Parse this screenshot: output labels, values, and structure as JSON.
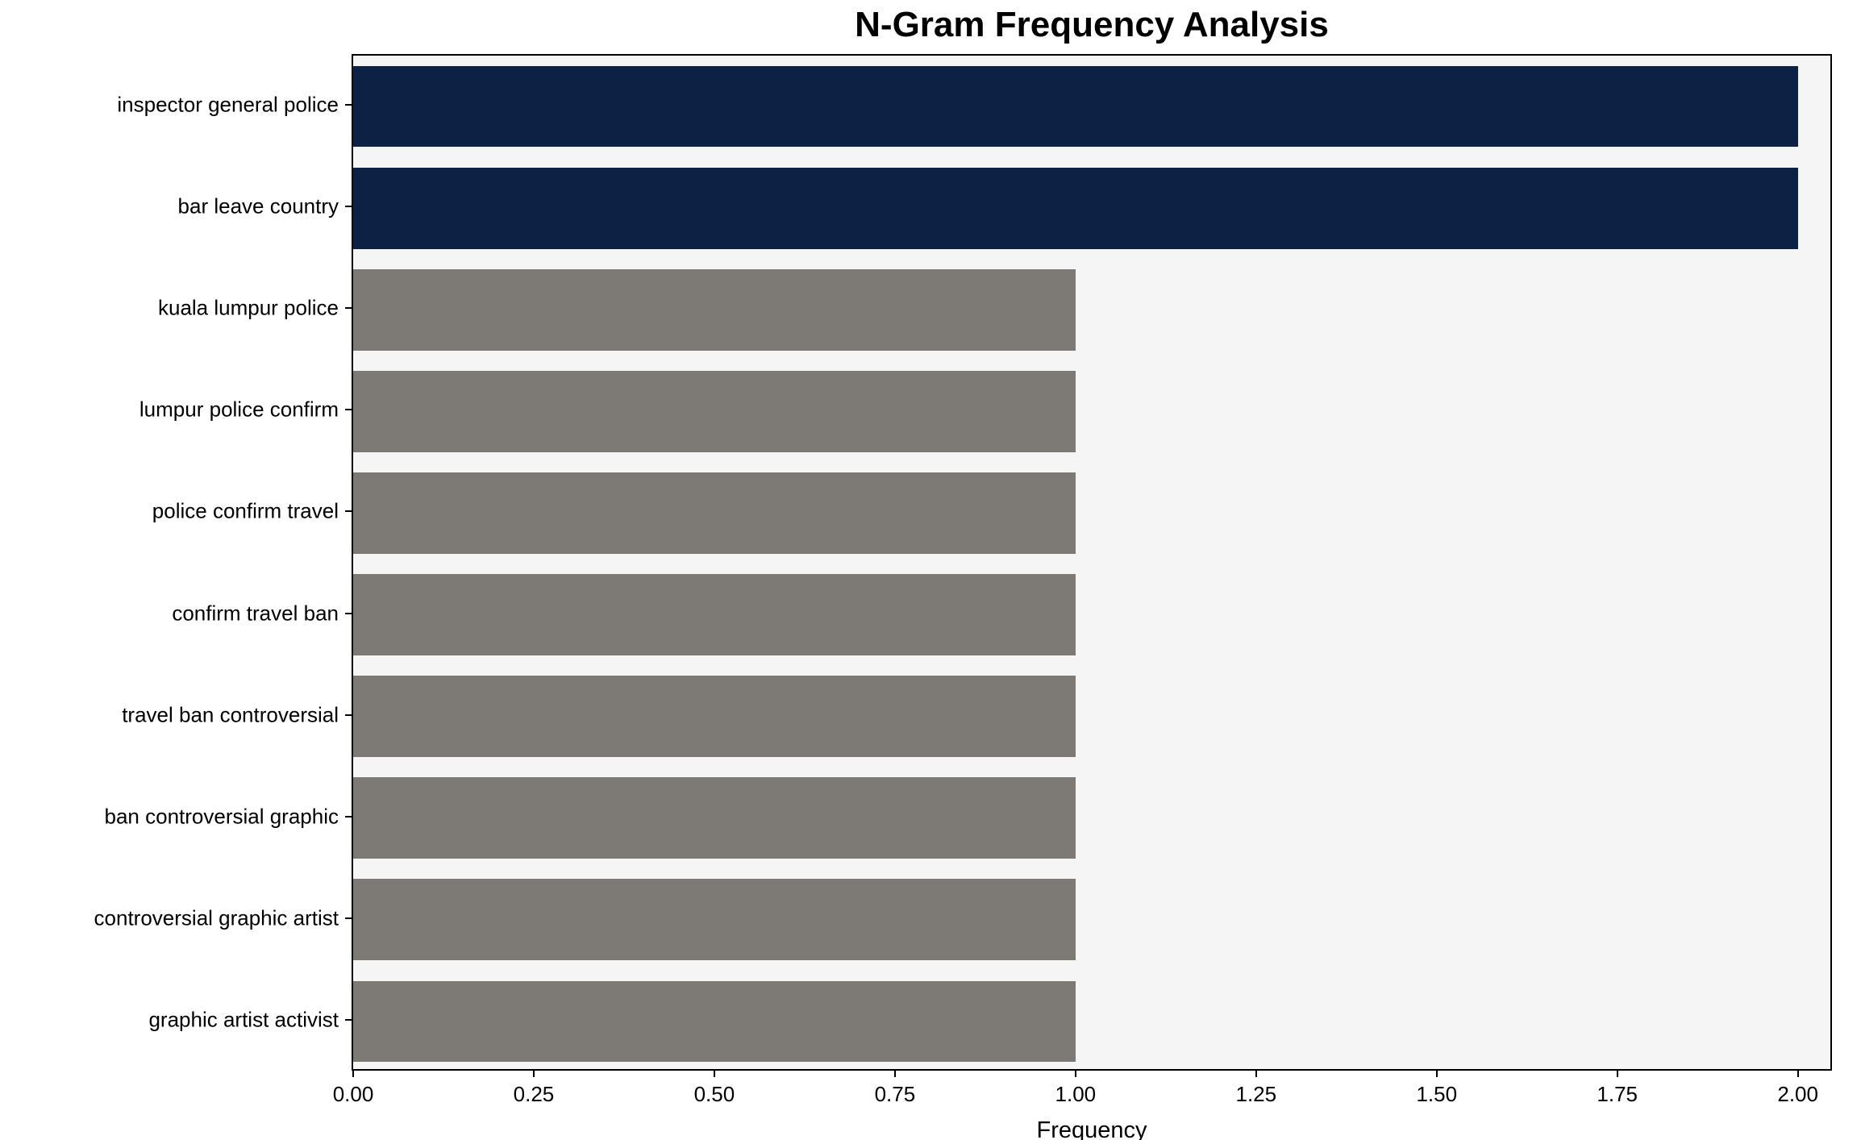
{
  "chart_data": {
    "type": "bar",
    "orientation": "horizontal",
    "title": "N-Gram Frequency Analysis",
    "xlabel": "Frequency",
    "ylabel": "",
    "categories": [
      "inspector general police",
      "bar leave country",
      "kuala lumpur police",
      "lumpur police confirm",
      "police confirm travel",
      "confirm travel ban",
      "travel ban controversial",
      "ban controversial graphic",
      "controversial graphic artist",
      "graphic artist activist"
    ],
    "values": [
      2,
      2,
      1,
      1,
      1,
      1,
      1,
      1,
      1,
      1
    ],
    "bar_colors": [
      "#0c2143",
      "#0c2143",
      "#7d7a75",
      "#7d7a75",
      "#7d7a75",
      "#7d7a75",
      "#7d7a75",
      "#7d7a75",
      "#7d7a75",
      "#7d7a75"
    ],
    "xlim": [
      0,
      2.045
    ],
    "xticks": [
      0,
      0.25,
      0.5,
      0.75,
      1.0,
      1.25,
      1.5,
      1.75,
      2.0
    ],
    "xtick_labels": [
      "0.00",
      "0.25",
      "0.50",
      "0.75",
      "1.00",
      "1.25",
      "1.50",
      "1.75",
      "2.00"
    ],
    "plot_bg": "#f5f5f5",
    "grid": false,
    "legend": null
  }
}
